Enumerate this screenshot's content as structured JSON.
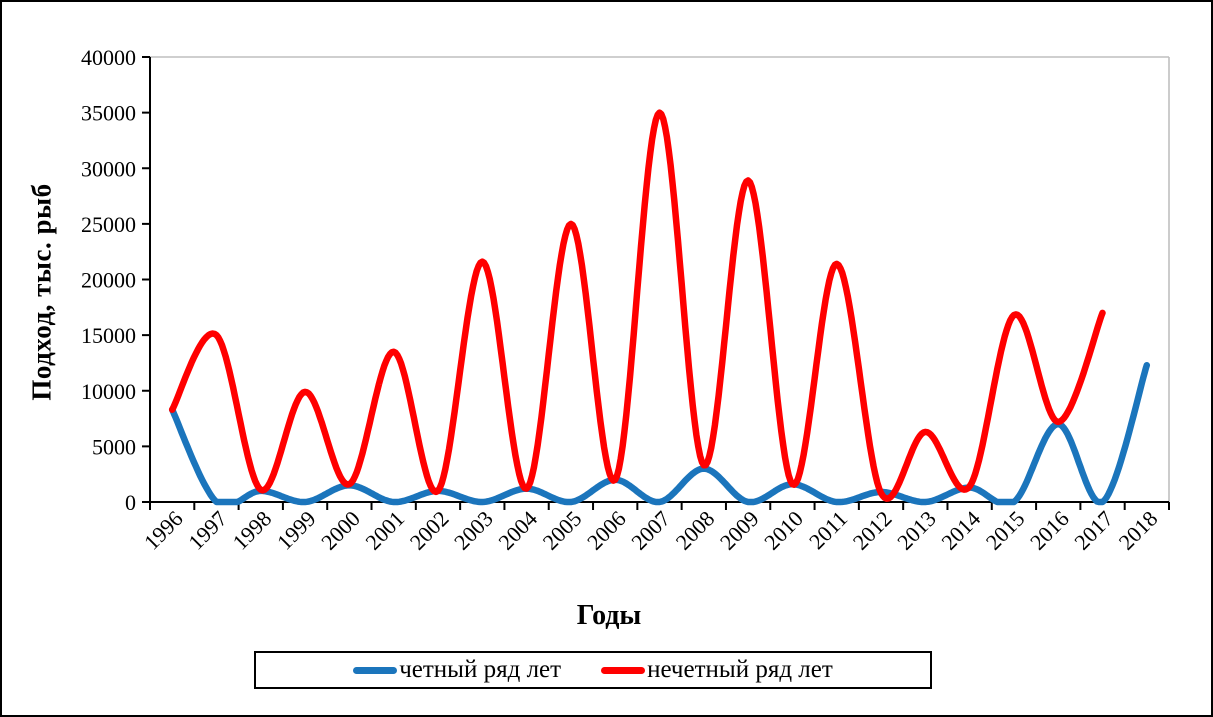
{
  "figure": {
    "y_axis_title": "Подход, тыс. рыб",
    "x_axis_title": "Годы",
    "background_color": "#FFFFFF",
    "outer_border_color": "#000000",
    "axis_color": "#000000",
    "plot_top_right_border_color": "#BFBFBF"
  },
  "legend": {
    "items": [
      {
        "label": "четный ряд лет",
        "color": "#1B75BC"
      },
      {
        "label": "нечетный ряд лет",
        "color": "#FF0000"
      }
    ]
  },
  "chart_data": {
    "type": "line",
    "smooth": true,
    "grid": false,
    "legend_position": "bottom",
    "title": "",
    "xlabel": "Годы",
    "ylabel": "Подход, тыс. рыб",
    "ylim": [
      0,
      40000
    ],
    "ytick_step": 5000,
    "y_ticks": [
      0,
      5000,
      10000,
      15000,
      20000,
      25000,
      30000,
      35000,
      40000
    ],
    "x": [
      "1996",
      "1997",
      "1998",
      "1999",
      "2000",
      "2001",
      "2002",
      "2003",
      "2004",
      "2005",
      "2006",
      "2007",
      "2008",
      "2009",
      "2010",
      "2011",
      "2012",
      "2013",
      "2014",
      "2015",
      "2016",
      "2017",
      "2018"
    ],
    "series": [
      {
        "name": "четный ряд лет",
        "color": "#1B75BC",
        "values": [
          8300,
          0,
          1000,
          0,
          1500,
          0,
          1000,
          0,
          1200,
          0,
          2000,
          0,
          3000,
          0,
          1600,
          0,
          900,
          0,
          1300,
          0,
          7000,
          0,
          12300
        ]
      },
      {
        "name": "нечетный ряд лет",
        "color": "#FF0000",
        "values": [
          8300,
          15000,
          1100,
          9900,
          1600,
          13500,
          1000,
          21600,
          1200,
          25000,
          2000,
          35000,
          3300,
          28900,
          1600,
          21400,
          800,
          6300,
          1400,
          16800,
          7200,
          17000,
          null
        ]
      }
    ]
  }
}
